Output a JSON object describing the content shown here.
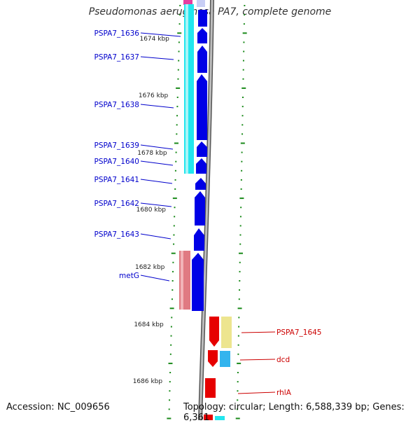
{
  "title": "Pseudomonas aeruginosa PA7, complete genome",
  "accession": "Accession: NC_009656",
  "topology": "Topology: circular; Length: 6,588,339 bp; Genes: 6,361",
  "colors": {
    "blue_gene": "#0000e6",
    "red_gene": "#e60000",
    "cyan_block": "#22e6ee",
    "pink_block": "#e07a82",
    "yellow_block": "#ede58f",
    "lightblue_block": "#33b4ee",
    "backbone": "#8a8a8a",
    "tick": "#1a8a1a",
    "blue_label": "#0000cc",
    "red_label": "#cc0000"
  },
  "scale_labels": [
    "1674 kbp",
    "1676 kbp",
    "1678 kbp",
    "1680 kbp",
    "1682 kbp",
    "1684 kbp",
    "1686 kbp"
  ],
  "left_genes": [
    "PSPA7_1636",
    "PSPA7_1637",
    "PSPA7_1638",
    "PSPA7_1639",
    "PSPA7_1640",
    "PSPA7_1641",
    "PSPA7_1642",
    "PSPA7_1643",
    "metG"
  ],
  "right_genes": [
    "PSPA7_1645",
    "dcd",
    "rhlA"
  ]
}
